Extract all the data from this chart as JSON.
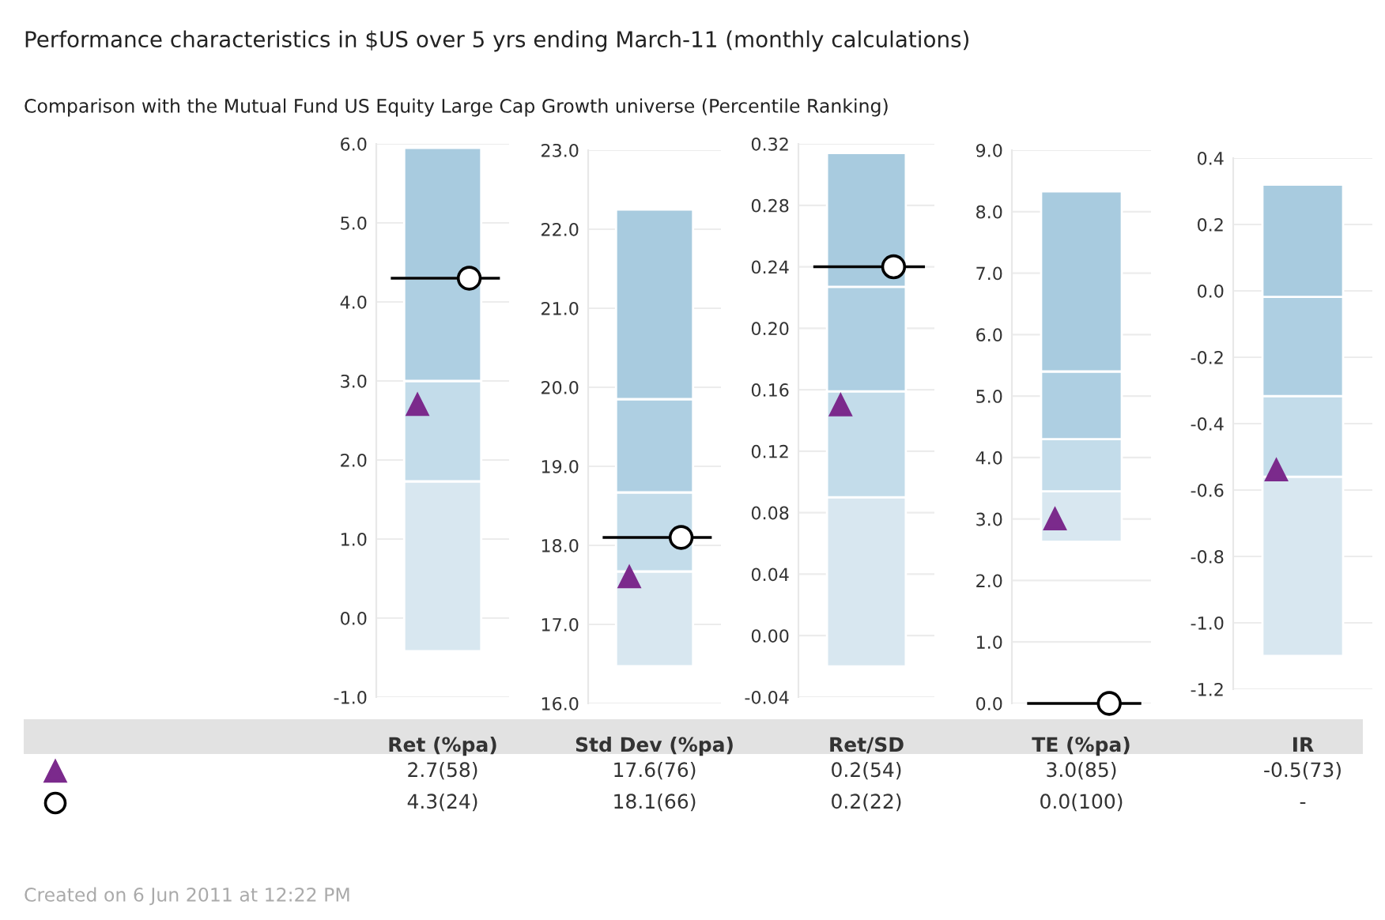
{
  "chart_data": [
    {
      "type": "bar",
      "title": "Performance characteristics in $US over 5 yrs ending March-11 (monthly calculations)",
      "subtitle": "Comparison with the Mutual Fund US Equity Large Cap Growth universe (Percentile Ranking)",
      "annotations": [
        "2.7(58)",
        "4.3(24)"
      ],
      "ref_lines": [
        {
          "axis": "y",
          "value": 4.3,
          "color": "#000000"
        }
      ],
      "xlabel": "Ret (%pa)",
      "categories": [
        null
      ],
      "grid": "y",
      "tick_labels": "y",
      "ylim": [
        -1,
        6
      ],
      "yticks": [
        {
          "value": -1,
          "label": "-1.0"
        },
        {
          "value": 0,
          "label": "0.0"
        },
        {
          "value": 1,
          "label": "1.0"
        },
        {
          "value": 2,
          "label": "2.0"
        },
        {
          "value": 3,
          "label": "3.0"
        },
        {
          "value": 4,
          "label": "4.0"
        },
        {
          "value": 5,
          "label": "5.0"
        },
        {
          "value": 6,
          "label": "6.0"
        }
      ],
      "series": [
        {
          "color": "#d8e7f0",
          "base": [
            -0.42
          ],
          "values": [
            2.15
          ]
        },
        {
          "color": "#c3dcea",
          "base": [
            1.73
          ],
          "values": [
            1.27
          ]
        },
        {
          "color": "#aecfe2",
          "base": [
            3.0
          ],
          "values": [
            1.3
          ]
        },
        {
          "color": "#a8cbdf",
          "base": [
            4.3
          ],
          "values": [
            1.65
          ]
        },
        {
          "type": "scatter",
          "marker": "triangle",
          "color": "#7b2a8c",
          "values": [
            2.7
          ]
        },
        {
          "type": "scatter",
          "marker": "circle",
          "color": "#ffffff",
          "values": [
            4.3
          ]
        }
      ]
    },
    {
      "type": "bar",
      "xlabel": "Std Dev (%pa)",
      "annotations": [
        "17.6(76)",
        "18.1(66)"
      ],
      "ref_lines": [
        {
          "axis": "y",
          "value": 18.1,
          "color": "#000000"
        }
      ],
      "categories": [
        null
      ],
      "grid": "y",
      "tick_labels": "y",
      "ylim": [
        16,
        23
      ],
      "yticks": [
        {
          "value": 16,
          "label": "16.0"
        },
        {
          "value": 17,
          "label": "17.0"
        },
        {
          "value": 18,
          "label": "18.0"
        },
        {
          "value": 19,
          "label": "19.0"
        },
        {
          "value": 20,
          "label": "20.0"
        },
        {
          "value": 21,
          "label": "21.0"
        },
        {
          "value": 22,
          "label": "22.0"
        },
        {
          "value": 23,
          "label": "23.0"
        }
      ],
      "series": [
        {
          "color": "#d8e7f0",
          "base": [
            16.47
          ],
          "values": [
            1.2
          ]
        },
        {
          "color": "#c3dcea",
          "base": [
            17.67
          ],
          "values": [
            1.0
          ]
        },
        {
          "color": "#aecfe2",
          "base": [
            18.67
          ],
          "values": [
            1.18
          ]
        },
        {
          "color": "#a8cbdf",
          "base": [
            19.85
          ],
          "values": [
            2.4
          ]
        },
        {
          "type": "scatter",
          "marker": "triangle",
          "color": "#7b2a8c",
          "values": [
            17.6
          ]
        },
        {
          "type": "scatter",
          "marker": "circle",
          "color": "#ffffff",
          "values": [
            18.1
          ]
        }
      ]
    },
    {
      "type": "bar",
      "xlabel": "Ret/SD",
      "annotations": [
        "0.2(54)",
        "0.2(22)"
      ],
      "ref_lines": [
        {
          "axis": "y",
          "value": 0.24,
          "color": "#000000"
        }
      ],
      "categories": [
        null
      ],
      "grid": "y",
      "tick_labels": "y",
      "ylim": [
        -0.04,
        0.32
      ],
      "yticks": [
        {
          "value": -0.04,
          "label": "-0.04"
        },
        {
          "value": 0,
          "label": "0.00"
        },
        {
          "value": 0.04,
          "label": "0.04"
        },
        {
          "value": 0.08,
          "label": "0.08"
        },
        {
          "value": 0.12,
          "label": "0.12"
        },
        {
          "value": 0.16,
          "label": "0.16"
        },
        {
          "value": 0.2,
          "label": "0.20"
        },
        {
          "value": 0.24,
          "label": "0.24"
        },
        {
          "value": 0.28,
          "label": "0.28"
        },
        {
          "value": 0.32,
          "label": "0.32"
        }
      ],
      "series": [
        {
          "color": "#d8e7f0",
          "base": [
            -0.02
          ],
          "values": [
            0.11
          ]
        },
        {
          "color": "#c3dcea",
          "base": [
            0.09
          ],
          "values": [
            0.069
          ]
        },
        {
          "color": "#aecfe2",
          "base": [
            0.159
          ],
          "values": [
            0.068
          ]
        },
        {
          "color": "#a8cbdf",
          "base": [
            0.227
          ],
          "values": [
            0.087
          ]
        },
        {
          "type": "scatter",
          "marker": "triangle",
          "color": "#7b2a8c",
          "values": [
            0.15
          ]
        },
        {
          "type": "scatter",
          "marker": "circle",
          "color": "#ffffff",
          "values": [
            0.24
          ]
        }
      ]
    },
    {
      "type": "bar",
      "xlabel": "TE (%pa)",
      "annotations": [
        "3.0(85)",
        "0.0(100)"
      ],
      "ref_lines": [
        {
          "axis": "y",
          "value": 0.0,
          "color": "#000000"
        }
      ],
      "categories": [
        null
      ],
      "grid": "y",
      "tick_labels": "y",
      "ylim": [
        0,
        9
      ],
      "yticks": [
        {
          "value": 0,
          "label": "0.0"
        },
        {
          "value": 1,
          "label": "1.0"
        },
        {
          "value": 2,
          "label": "2.0"
        },
        {
          "value": 3,
          "label": "3.0"
        },
        {
          "value": 4,
          "label": "4.0"
        },
        {
          "value": 5,
          "label": "5.0"
        },
        {
          "value": 6,
          "label": "6.0"
        },
        {
          "value": 7,
          "label": "7.0"
        },
        {
          "value": 8,
          "label": "8.0"
        },
        {
          "value": 9,
          "label": "9.0"
        }
      ],
      "series": [
        {
          "color": "#d8e7f0",
          "base": [
            2.63
          ],
          "values": [
            0.82
          ]
        },
        {
          "color": "#c3dcea",
          "base": [
            3.45
          ],
          "values": [
            0.85
          ]
        },
        {
          "color": "#aecfe2",
          "base": [
            4.3
          ],
          "values": [
            1.1
          ]
        },
        {
          "color": "#a8cbdf",
          "base": [
            5.4
          ],
          "values": [
            2.93
          ]
        },
        {
          "type": "scatter",
          "marker": "triangle",
          "color": "#7b2a8c",
          "values": [
            3.0
          ]
        },
        {
          "type": "scatter",
          "marker": "circle",
          "color": "#ffffff",
          "values": [
            0.0
          ]
        }
      ]
    },
    {
      "type": "bar",
      "xlabel": "IR",
      "annotations": [
        "-0.5(73)",
        "-",
        "Created on 6 Jun 2011 at 12:22 PM"
      ],
      "categories": [
        null
      ],
      "grid": "y",
      "tick_labels": "y",
      "ylim": [
        -1.2,
        0.4
      ],
      "yticks": [
        {
          "value": -1.2,
          "label": "-1.2"
        },
        {
          "value": -1.0,
          "label": "-1.0"
        },
        {
          "value": -0.8,
          "label": "-0.8"
        },
        {
          "value": -0.6,
          "label": "-0.6"
        },
        {
          "value": -0.4,
          "label": "-0.4"
        },
        {
          "value": -0.2,
          "label": "-0.2"
        },
        {
          "value": 0,
          "label": "0.0"
        },
        {
          "value": 0.2,
          "label": "0.2"
        },
        {
          "value": 0.4,
          "label": "0.4"
        }
      ],
      "series": [
        {
          "color": "#d8e7f0",
          "base": [
            -1.1
          ],
          "values": [
            0.54
          ]
        },
        {
          "color": "#c3dcea",
          "base": [
            -0.56
          ],
          "values": [
            0.243
          ]
        },
        {
          "color": "#aecfe2",
          "base": [
            -0.317
          ],
          "values": [
            0.299
          ]
        },
        {
          "color": "#a8cbdf",
          "base": [
            -0.018
          ],
          "values": [
            0.338
          ]
        },
        {
          "type": "scatter",
          "marker": "triangle",
          "color": "#7b2a8c",
          "values": [
            -0.54
          ]
        },
        {
          "type": "scatter",
          "marker": "circle",
          "color": "#ffffff",
          "values": [
            null
          ]
        }
      ]
    }
  ]
}
